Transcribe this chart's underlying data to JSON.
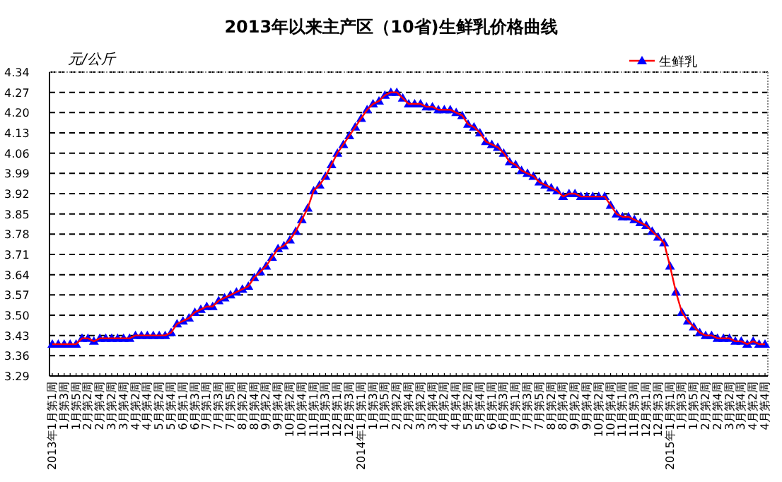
{
  "chart_data": {
    "type": "line",
    "title": "2013年以来主产区（10省)生鲜乳价格曲线",
    "ylabel": "元/公斤",
    "categories": [
      "2013年1月第1周",
      null,
      "1月第3周",
      null,
      "1月第5周",
      null,
      "2月第2周",
      null,
      "2月第4周",
      null,
      "3月第2周",
      null,
      "3月第4周",
      null,
      "4月第2周",
      null,
      "4月第4周",
      null,
      "5月第2周",
      null,
      "5月第4周",
      null,
      "6月第1周",
      null,
      "6月第3周",
      null,
      "7月第1周",
      null,
      "7月第3周",
      null,
      "7月第5周",
      null,
      "8月第2周",
      null,
      "8月第4周",
      null,
      "9月第2周",
      null,
      "9月第4周",
      null,
      "10月第2周",
      null,
      "10月第4周",
      null,
      "11月第1周",
      null,
      "11月第3周",
      null,
      "12月第1周",
      null,
      "12月第3周",
      null,
      "2014年1月第1周",
      null,
      "1月第3周",
      null,
      "1月第5周",
      null,
      "2月第2周",
      null,
      "2月第4周",
      null,
      "3月第2周",
      null,
      "3月第4周",
      null,
      "4月第2周",
      null,
      "4月第4周",
      null,
      "5月第2周",
      null,
      "5月第4周",
      null,
      "6月第1周",
      null,
      "6月第3周",
      null,
      "7月第1周",
      null,
      "7月第3周",
      null,
      "7月第5周",
      null,
      "8月第2周",
      null,
      "8月第4周",
      null,
      "9月第2周",
      null,
      "9月第4周",
      null,
      "10月第2周",
      null,
      "10月第4周",
      null,
      "11月第1周",
      null,
      "11月第3周",
      null,
      "12月第1周",
      null,
      "12月第3周",
      null,
      "2015年1月第1周",
      null,
      "1月第3周",
      null,
      "1月第5周",
      null,
      "2月第2周",
      null,
      "2月第4周",
      null,
      "3月第2周",
      null,
      "3月第4周",
      null,
      "4月第2周",
      null,
      "4月第4周"
    ],
    "series": [
      {
        "name": "生鲜乳",
        "color": "#0000ff",
        "values": [
          3.4,
          3.4,
          3.4,
          3.4,
          3.4,
          3.42,
          3.42,
          3.41,
          3.42,
          3.42,
          3.42,
          3.42,
          3.42,
          3.42,
          3.43,
          3.43,
          3.43,
          3.43,
          3.43,
          3.43,
          3.44,
          3.47,
          3.48,
          3.49,
          3.51,
          3.52,
          3.53,
          3.53,
          3.55,
          3.56,
          3.57,
          3.58,
          3.59,
          3.6,
          3.63,
          3.65,
          3.67,
          3.7,
          3.73,
          3.74,
          3.76,
          3.79,
          3.83,
          3.87,
          3.93,
          3.95,
          3.98,
          4.02,
          4.06,
          4.09,
          4.12,
          4.15,
          4.18,
          4.21,
          4.23,
          4.24,
          4.26,
          4.27,
          4.27,
          4.25,
          4.23,
          4.23,
          4.23,
          4.22,
          4.22,
          4.21,
          4.21,
          4.21,
          4.2,
          4.19,
          4.16,
          4.15,
          4.13,
          4.1,
          4.09,
          4.08,
          4.06,
          4.03,
          4.02,
          4.0,
          3.99,
          3.98,
          3.96,
          3.95,
          3.94,
          3.93,
          3.91,
          3.92,
          3.92,
          3.91,
          3.91,
          3.91,
          3.91,
          3.91,
          3.88,
          3.85,
          3.84,
          3.84,
          3.83,
          3.82,
          3.81,
          3.79,
          3.77,
          3.75,
          3.67,
          3.58,
          3.51,
          3.48,
          3.46,
          3.44,
          3.43,
          3.43,
          3.42,
          3.42,
          3.42,
          3.41,
          3.41,
          3.4,
          3.41,
          3.4,
          3.4
        ]
      }
    ],
    "ylim": [
      3.29,
      4.34
    ],
    "yticks": [
      3.29,
      3.36,
      3.43,
      {
        "value": 3.5,
        "label": "3.50"
      },
      3.57,
      3.64,
      3.71,
      3.78,
      3.85,
      3.92,
      3.99,
      4.06,
      4.13,
      {
        "value": 4.2,
        "label": "4.20"
      },
      4.27,
      4.34
    ],
    "grid": "y",
    "legend": "top right",
    "marker": "triangle"
  }
}
